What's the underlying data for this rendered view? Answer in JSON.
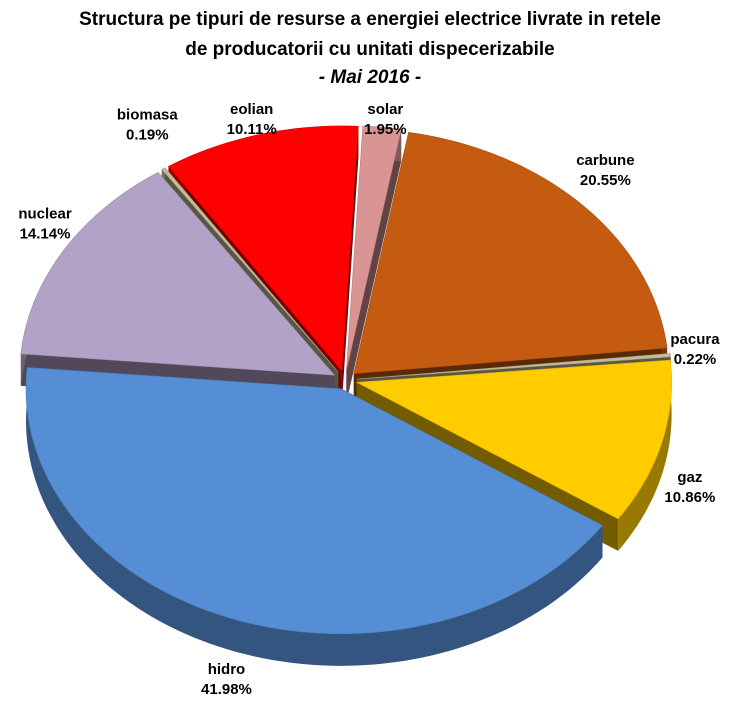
{
  "chart_data": {
    "type": "pie",
    "title": [
      "Structura pe tipuri de resurse a energiei electrice livrate in retele",
      "de producatorii cu unitati dispecerizabile"
    ],
    "subtitle": "- Mai 2016 -",
    "categories": [
      "solar",
      "carbune",
      "pacura",
      "gaz",
      "hidro",
      "nuclear",
      "biomasa",
      "eolian"
    ],
    "values": [
      1.95,
      20.55,
      0.22,
      10.86,
      41.98,
      14.14,
      0.19,
      10.11
    ],
    "value_labels": [
      "1.95%",
      "20.55%",
      "0.22%",
      "10.86%",
      "41.98%",
      "14.14%",
      "0.19%",
      "10.11%"
    ],
    "colors": [
      "#d99594",
      "#c55a11",
      "#c4bd97",
      "#ffcc00",
      "#558ed5",
      "#b3a2c7",
      "#c4bd97",
      "#ff0000"
    ]
  }
}
